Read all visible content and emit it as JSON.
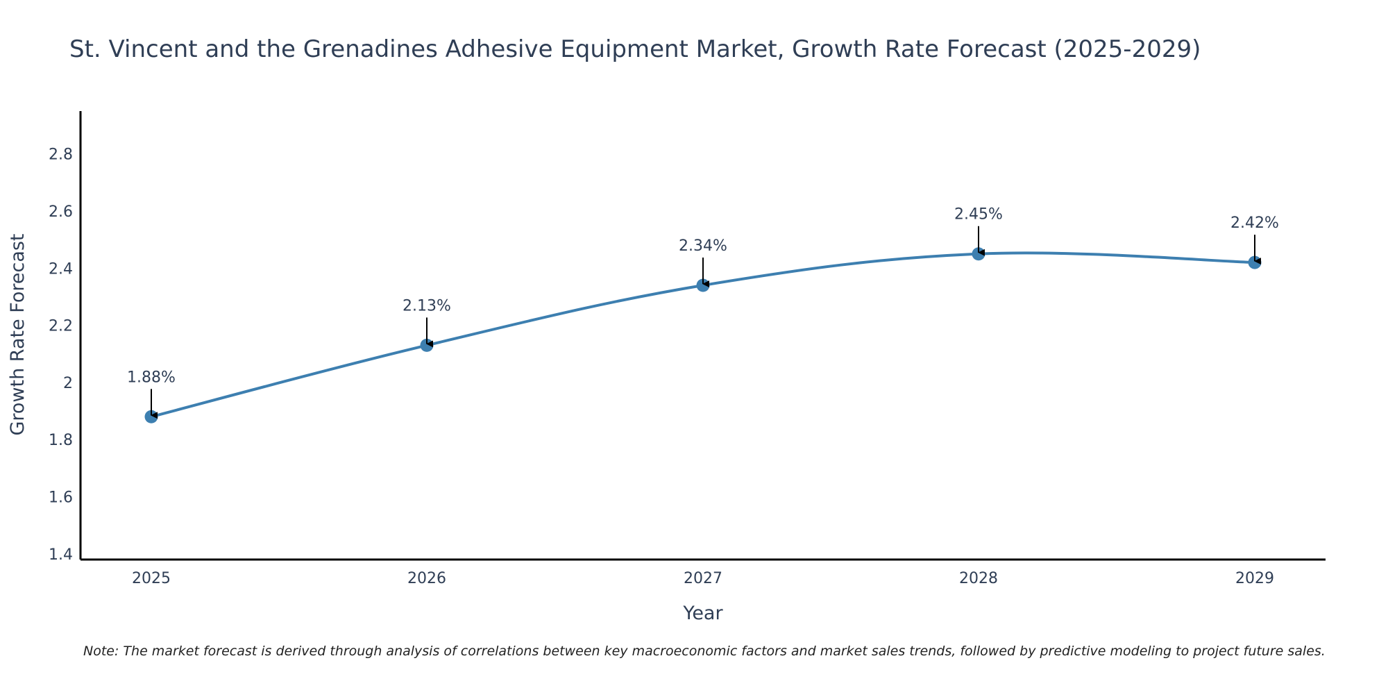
{
  "chart_data": {
    "type": "line",
    "title": "St. Vincent and the Grenadines Adhesive Equipment Market, Growth Rate Forecast (2025-2029)",
    "xlabel": "Year",
    "ylabel": "Growth Rate Forecast",
    "categories": [
      "2025",
      "2026",
      "2027",
      "2028",
      "2029"
    ],
    "series": [
      {
        "name": "Growth Rate Forecast",
        "values": [
          1.88,
          2.13,
          2.34,
          2.45,
          2.42
        ],
        "labels": [
          "1.88%",
          "2.13%",
          "2.34%",
          "2.45%",
          "2.42%"
        ],
        "color": "#3d7fb0"
      }
    ],
    "ylim": [
      1.38,
      2.95
    ],
    "yticks": [
      1.4,
      1.6,
      1.8,
      2,
      2.2,
      2.4,
      2.6,
      2.8
    ],
    "ytick_labels": [
      "1.4",
      "1.6",
      "1.8",
      "2",
      "2.2",
      "2.4",
      "2.6",
      "2.8"
    ],
    "grid": false,
    "legend": "none",
    "note": "Note: The market forecast is derived through analysis of correlations between key macroeconomic factors and market sales trends, followed by predictive modeling to project future sales."
  },
  "colors": {
    "line": "#3d7fb0",
    "marker": "#3d7fb0",
    "text": "#2f3e55",
    "axis": "#000000",
    "arrow": "#000000"
  }
}
